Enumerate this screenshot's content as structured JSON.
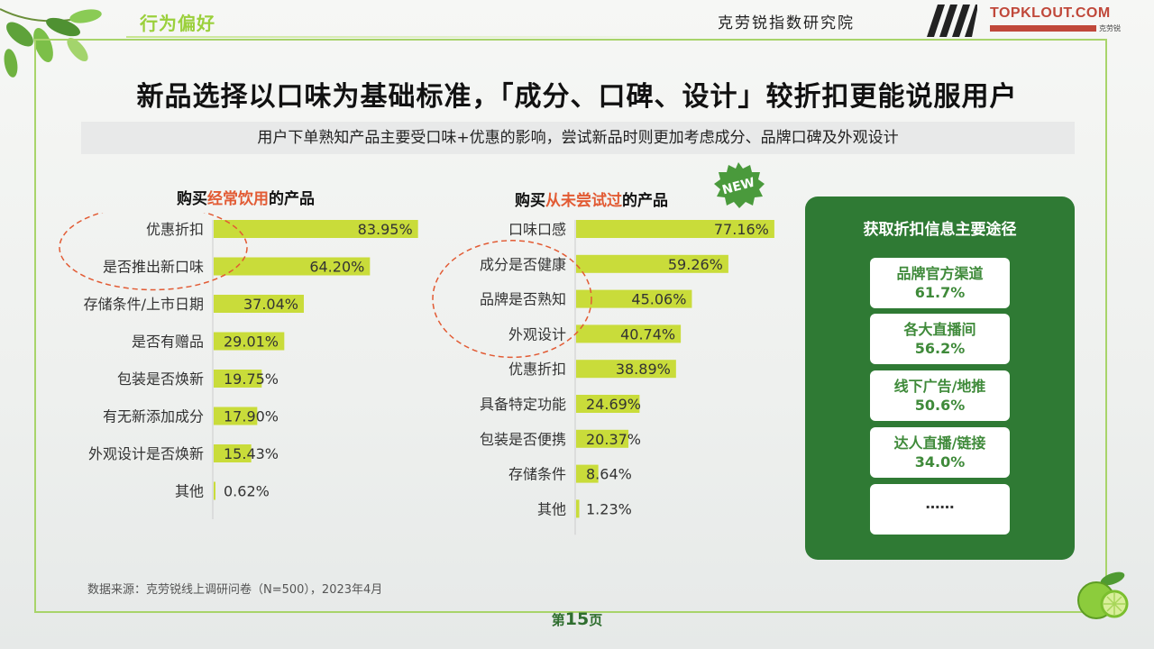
{
  "header": {
    "section": "行为偏好",
    "institute": "克劳锐指数研究院",
    "logo_text": "TOPKLOUT.COM",
    "logo_sub_cn": "克劳锐"
  },
  "headline": "新品选择以口味为基础标准，「成分、口碑、设计」较折扣更能说服用户",
  "subline": "用户下单熟知产品主要受口味+优惠的影响，尝试新品时则更加考虑成分、品牌口碑及外观设计",
  "badge": "NEW",
  "colors": {
    "bar": "#c9dc3a",
    "accent": "#e25b34",
    "panel": "#2f7a34",
    "frame": "#a8d46a"
  },
  "chart_data": [
    {
      "type": "bar",
      "orientation": "horizontal",
      "title_prefix": "购买",
      "title_highlight": "经常饮用",
      "title_suffix": "的产品",
      "categories": [
        "优惠折扣",
        "是否推出新口味",
        "存储条件/上市日期",
        "是否有赠品",
        "包装是否焕新",
        "有无新添加成分",
        "外观设计是否焕新",
        "其他"
      ],
      "values": [
        83.95,
        64.2,
        37.04,
        29.01,
        19.75,
        17.9,
        15.43,
        0.62
      ],
      "value_labels": [
        "83.95%",
        "64.20%",
        "37.04%",
        "29.01%",
        "19.75%",
        "17.90%",
        "15.43%",
        "0.62%"
      ],
      "highlighted_categories": [
        "优惠折扣",
        "是否推出新口味"
      ],
      "xlim": [
        0,
        100
      ]
    },
    {
      "type": "bar",
      "orientation": "horizontal",
      "title_prefix": "购买",
      "title_highlight": "从未尝试过",
      "title_suffix": "的产品",
      "categories": [
        "口味口感",
        "成分是否健康",
        "品牌是否熟知",
        "外观设计",
        "优惠折扣",
        "具备特定功能",
        "包装是否便携",
        "存储条件",
        "其他"
      ],
      "values": [
        77.16,
        59.26,
        45.06,
        40.74,
        38.89,
        24.69,
        20.37,
        8.64,
        1.23
      ],
      "value_labels": [
        "77.16%",
        "59.26%",
        "45.06%",
        "40.74%",
        "38.89%",
        "24.69%",
        "20.37%",
        "8.64%",
        "1.23%"
      ],
      "highlighted_categories": [
        "成分是否健康",
        "品牌是否熟知",
        "外观设计"
      ],
      "xlim": [
        0,
        100
      ]
    }
  ],
  "panel": {
    "title": "获取折扣信息主要途径",
    "items": [
      {
        "label": "品牌官方渠道",
        "value": "61.7%"
      },
      {
        "label": "各大直播间",
        "value": "56.2%"
      },
      {
        "label": "线下广告/地推",
        "value": "50.6%"
      },
      {
        "label": "达人直播/链接",
        "value": "34.0%"
      }
    ],
    "more": "……"
  },
  "footer": {
    "source": "数据来源：克劳锐线上调研问卷（N=500），2023年4月",
    "page_prefix": "第",
    "page_number": "15",
    "page_suffix": "页"
  }
}
